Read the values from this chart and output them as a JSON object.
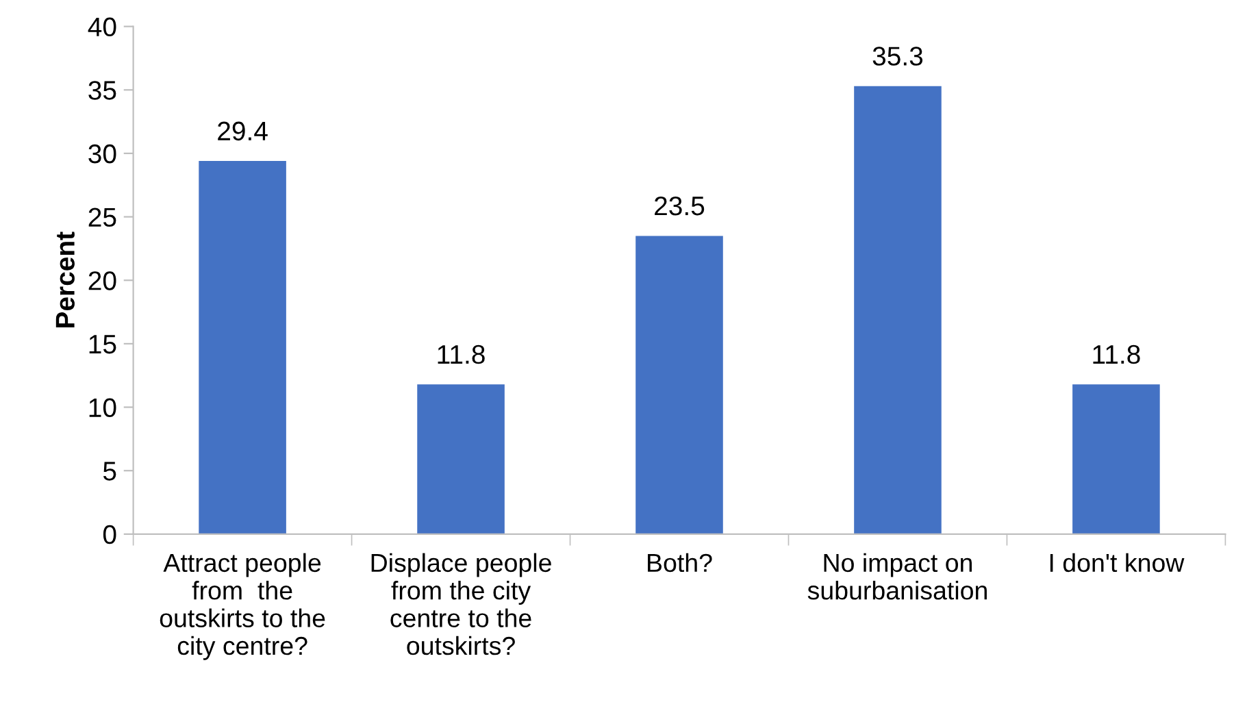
{
  "chart_data": {
    "type": "bar",
    "ylabel": "Percent",
    "categories": [
      "Attract people\nfrom  the\noutskirts to the\ncity centre?",
      "Displace people\nfrom the city\ncentre to the\noutskirts?",
      "Both?",
      "No impact on\nsuburbanisation",
      "I don't know"
    ],
    "values": [
      29.4,
      11.8,
      23.5,
      35.3,
      11.8
    ],
    "color": "#4472c4",
    "ylim": [
      0,
      40
    ],
    "yticks": [
      0,
      5,
      10,
      15,
      20,
      25,
      30,
      35,
      40
    ],
    "grid": false,
    "data_labels": true
  }
}
